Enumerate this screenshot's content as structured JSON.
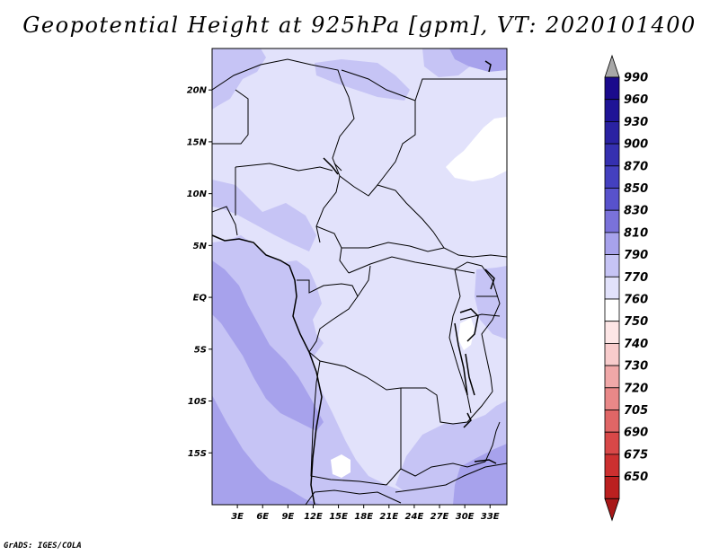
{
  "title": "Geopotential Height at 925hPa [gpm], VT: 2020101400",
  "footer": "GrADS: IGES/COLA",
  "map": {
    "region": "Central Africa",
    "lon_range": [
      0,
      35
    ],
    "lat_range": [
      -20,
      24
    ],
    "lat_ticks": [
      {
        "value": 20,
        "label": "20N"
      },
      {
        "value": 15,
        "label": "15N"
      },
      {
        "value": 10,
        "label": "10N"
      },
      {
        "value": 5,
        "label": "5N"
      },
      {
        "value": 0,
        "label": "EQ"
      },
      {
        "value": -5,
        "label": "5S"
      },
      {
        "value": -10,
        "label": "10S"
      },
      {
        "value": -15,
        "label": "15S"
      }
    ],
    "lon_ticks": [
      {
        "value": 3,
        "label": "3E"
      },
      {
        "value": 6,
        "label": "6E"
      },
      {
        "value": 9,
        "label": "9E"
      },
      {
        "value": 12,
        "label": "12E"
      },
      {
        "value": 15,
        "label": "15E"
      },
      {
        "value": 18,
        "label": "18E"
      },
      {
        "value": 21,
        "label": "21E"
      },
      {
        "value": 24,
        "label": "24E"
      },
      {
        "value": 27,
        "label": "27E"
      },
      {
        "value": 30,
        "label": "30E"
      },
      {
        "value": 33,
        "label": "33E"
      }
    ]
  },
  "colorbar": {
    "levels": [
      {
        "label": "990",
        "color": "#1a0a8c"
      },
      {
        "label": "960",
        "color": "#1f1496"
      },
      {
        "label": "930",
        "color": "#2a22a2"
      },
      {
        "label": "900",
        "color": "#3530b0"
      },
      {
        "label": "870",
        "color": "#4440bf"
      },
      {
        "label": "850",
        "color": "#5852cc"
      },
      {
        "label": "830",
        "color": "#7a72da"
      },
      {
        "label": "810",
        "color": "#a7a2ec"
      },
      {
        "label": "790",
        "color": "#c6c4f5"
      },
      {
        "label": "770",
        "color": "#e2e2fb"
      },
      {
        "label": "760",
        "color": "#ffffff"
      },
      {
        "label": "750",
        "color": "#fde6e6"
      },
      {
        "label": "740",
        "color": "#f8cccc"
      },
      {
        "label": "730",
        "color": "#f0a8a8"
      },
      {
        "label": "720",
        "color": "#e98888"
      },
      {
        "label": "705",
        "color": "#e06666"
      },
      {
        "label": "690",
        "color": "#d84848"
      },
      {
        "label": "675",
        "color": "#cc3030"
      },
      {
        "label": "650",
        "color": "#bb2020"
      }
    ],
    "top_arrow_color": "#a8a8a8",
    "bottom_arrow_color": "#a81818"
  },
  "field_colors": {
    "c770": "#e2e2fb",
    "c790": "#c6c4f5",
    "c810": "#a7a2ec",
    "c760": "#ffffff",
    "coast": "#000000"
  }
}
